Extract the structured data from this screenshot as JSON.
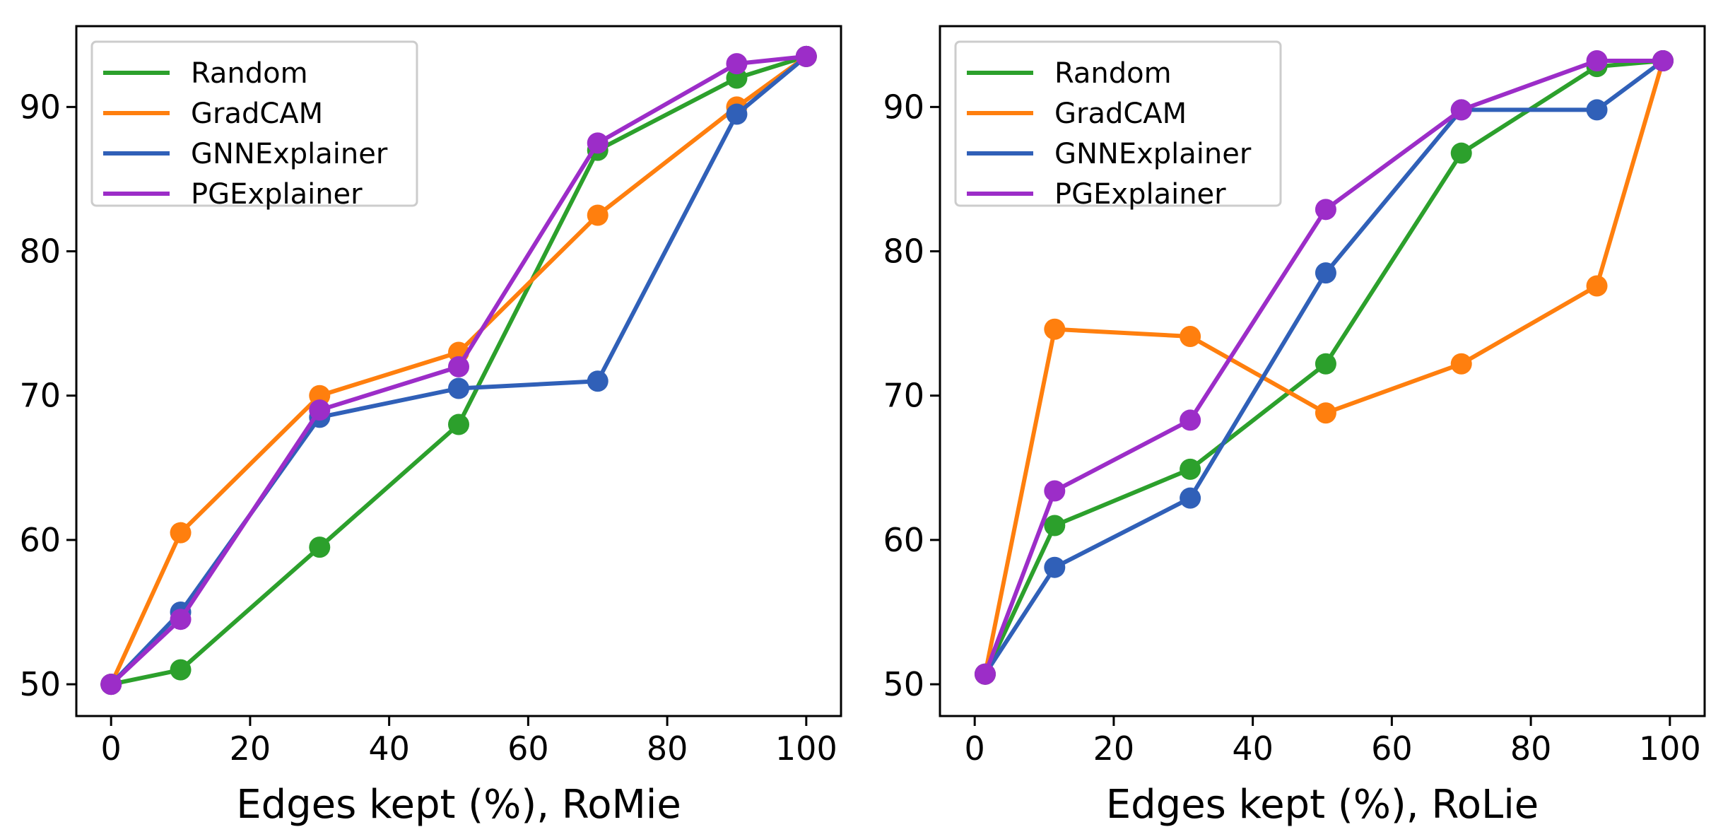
{
  "chart_data": [
    {
      "type": "line",
      "title": "",
      "xlabel": "Edges kept (%), RoMie",
      "ylabel": "",
      "xlim": [
        -5,
        105
      ],
      "ylim": [
        47.8,
        95.6
      ],
      "xticks": [
        0,
        20,
        40,
        60,
        80,
        100
      ],
      "yticks": [
        50,
        60,
        70,
        80,
        90
      ],
      "xtick_labels": [
        "0",
        "20",
        "40",
        "60",
        "80",
        "100"
      ],
      "ytick_labels": [
        "50",
        "60",
        "70",
        "80",
        "90"
      ],
      "grid": false,
      "legend_position": "top-left",
      "series": [
        {
          "name": "Random",
          "color": "#2ca02c",
          "x": [
            0,
            10,
            30,
            50,
            70,
            90,
            100
          ],
          "y": [
            50.0,
            51.0,
            59.5,
            68.0,
            87.0,
            92.0,
            93.5
          ]
        },
        {
          "name": "GradCAM",
          "color": "#ff7f0e",
          "x": [
            0,
            10,
            30,
            50,
            70,
            90,
            100
          ],
          "y": [
            50.0,
            60.5,
            70.0,
            73.0,
            82.5,
            90.0,
            93.5
          ]
        },
        {
          "name": "GNNExplainer",
          "color": "#3060b8",
          "x": [
            0,
            10,
            30,
            50,
            70,
            90,
            100
          ],
          "y": [
            50.0,
            55.0,
            68.5,
            70.5,
            71.0,
            89.5,
            93.5
          ]
        },
        {
          "name": "PGExplainer",
          "color": "#9c2dc8",
          "x": [
            0,
            10,
            30,
            50,
            70,
            90,
            100
          ],
          "y": [
            50.0,
            54.5,
            69.0,
            72.0,
            87.5,
            93.0,
            93.5
          ]
        }
      ]
    },
    {
      "type": "line",
      "title": "",
      "xlabel": "Edges kept (%), RoLie",
      "ylabel": "",
      "xlim": [
        -5,
        105
      ],
      "ylim": [
        47.8,
        95.6
      ],
      "xticks": [
        0,
        20,
        40,
        60,
        80,
        100
      ],
      "yticks": [
        50,
        60,
        70,
        80,
        90
      ],
      "xtick_labels": [
        "0",
        "20",
        "40",
        "60",
        "80",
        "100"
      ],
      "ytick_labels": [
        "50",
        "60",
        "70",
        "80",
        "90"
      ],
      "grid": false,
      "legend_position": "top-left",
      "series": [
        {
          "name": "Random",
          "color": "#2ca02c",
          "x": [
            1.5,
            11.5,
            31,
            50.5,
            70,
            89.5,
            99
          ],
          "y": [
            50.7,
            61.0,
            64.9,
            72.2,
            86.8,
            92.8,
            93.2
          ]
        },
        {
          "name": "GradCAM",
          "color": "#ff7f0e",
          "x": [
            1.5,
            11.5,
            31,
            50.5,
            70,
            89.5,
            99
          ],
          "y": [
            50.7,
            74.6,
            74.1,
            68.8,
            72.2,
            77.6,
            93.2
          ]
        },
        {
          "name": "GNNExplainer",
          "color": "#3060b8",
          "x": [
            1.5,
            11.5,
            31,
            50.5,
            70,
            89.5,
            99
          ],
          "y": [
            50.7,
            58.1,
            62.9,
            78.5,
            89.8,
            89.8,
            93.2
          ]
        },
        {
          "name": "PGExplainer",
          "color": "#9c2dc8",
          "x": [
            1.5,
            11.5,
            31,
            50.5,
            70,
            89.5,
            99
          ],
          "y": [
            50.7,
            63.4,
            68.3,
            82.9,
            89.8,
            93.2,
            93.2
          ]
        }
      ]
    }
  ]
}
